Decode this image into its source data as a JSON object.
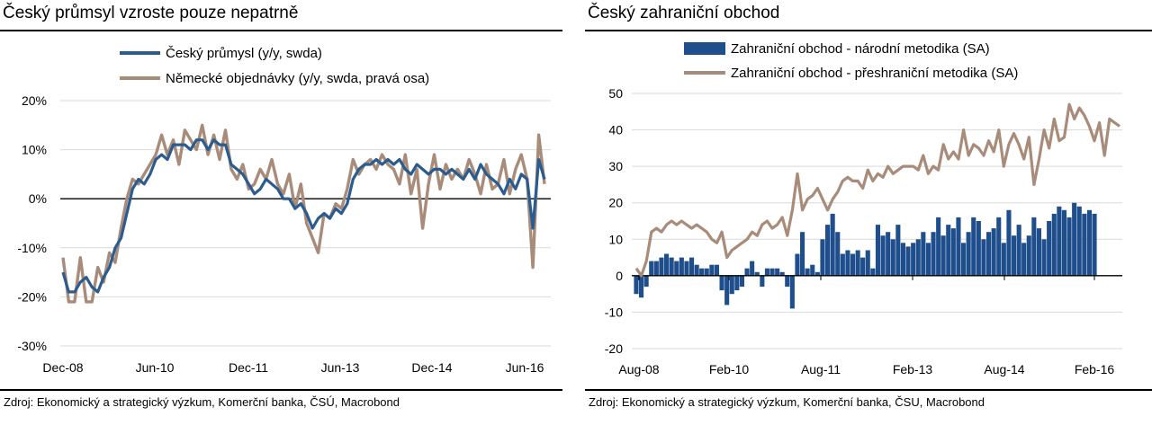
{
  "left": {
    "title": "Český průmsyl vzroste pouze nepatrně",
    "source": "Zdroj: Ekonomický a strategický výzkum, Komerční banka, ČSÚ, Macrobond",
    "chart_data": {
      "type": "line",
      "title": "Český průmsyl vzroste pouze nepatrně",
      "legend_position": "top",
      "grid": true,
      "y_tick_labels": [
        "20%",
        "10%",
        "0%",
        "-10%",
        "-20%",
        "-30%"
      ],
      "y_ticks": [
        20,
        10,
        0,
        -10,
        -20,
        -30
      ],
      "ylim": [
        -30,
        20
      ],
      "x_tick_labels": [
        "Dec-08",
        "Jun-10",
        "Dec-11",
        "Jun-13",
        "Dec-14",
        "Jun-16"
      ],
      "series": [
        {
          "name": "Český průmysl (y/y, swda)",
          "color": "#2b5c8f",
          "start": "2008-12",
          "values": [
            -15,
            -19,
            -19,
            -17,
            -16,
            -18,
            -19,
            -16,
            -14,
            -10,
            -8,
            -3,
            2,
            4,
            3,
            5,
            8,
            9,
            8,
            11,
            11,
            11,
            10,
            12,
            12,
            10,
            12,
            11,
            11,
            7,
            6,
            5,
            3,
            1,
            2,
            4,
            3,
            2,
            0,
            0,
            -2,
            -1,
            -3,
            -6,
            -4,
            -3,
            -4,
            -2,
            -3,
            -1,
            4,
            6,
            7,
            7,
            8,
            7,
            8,
            7,
            8,
            6,
            5,
            7,
            6,
            5,
            6,
            6,
            5,
            6,
            5,
            4,
            6,
            4,
            7,
            5,
            4,
            3,
            1,
            4,
            2,
            5,
            4,
            -6,
            8,
            4
          ]
        },
        {
          "name": "Německé objednávky (y/y, swda, pravá osa)",
          "color": "#a98b7a",
          "start": "2008-12",
          "values": [
            -12,
            -21,
            -21,
            -12,
            -21,
            -21,
            -14,
            -17,
            -11,
            -13,
            -6,
            0,
            4,
            3,
            5,
            7,
            9,
            13,
            9,
            12,
            7,
            14,
            12,
            10,
            15,
            9,
            13,
            8,
            14,
            6,
            4,
            7,
            2,
            3,
            6,
            4,
            8,
            3,
            1,
            5,
            -2,
            3,
            -5,
            -8,
            -11,
            -3,
            -4,
            -1,
            -2,
            2,
            8,
            5,
            7,
            8,
            6,
            9,
            7,
            6,
            3,
            9,
            1,
            6,
            -6,
            3,
            9,
            2,
            7,
            4,
            6,
            4,
            8,
            5,
            1,
            7,
            2,
            3,
            8,
            1,
            6,
            9,
            4,
            -14,
            13,
            3
          ]
        }
      ]
    }
  },
  "right": {
    "title": "Český zahraniční obchod",
    "source": "Zdroj: Ekonomický a strategický výzkum, Komerční banka, ČSU, Macrobond",
    "chart_data": {
      "type": "bar",
      "title": "Český zahraniční obchod",
      "legend_position": "top",
      "grid": true,
      "y_tick_labels": [
        "50",
        "40",
        "30",
        "20",
        "10",
        "0",
        "-10",
        "-20"
      ],
      "y_ticks": [
        50,
        40,
        30,
        20,
        10,
        0,
        -10,
        -20
      ],
      "ylim": [
        -20,
        50
      ],
      "x_tick_labels": [
        "Aug-08",
        "Feb-10",
        "Aug-11",
        "Feb-13",
        "Aug-14",
        "Feb-16"
      ],
      "series": [
        {
          "name": "Zahraniční obchod - národní metodika (SA)",
          "type": "bar",
          "color": "#1f4e8c",
          "start": "2008-08",
          "values": [
            -5,
            -6,
            -3,
            4,
            4,
            5,
            6,
            5,
            4,
            5,
            4,
            5,
            3,
            2,
            2,
            3,
            3,
            -4,
            -8,
            -5,
            -4,
            -3,
            2,
            4,
            1,
            -3,
            2,
            2,
            2,
            1,
            -3,
            -9,
            6,
            12,
            2,
            3,
            1,
            10,
            14,
            17,
            12,
            6,
            7,
            6,
            7,
            5,
            7,
            2,
            14,
            11,
            12,
            10,
            14,
            9,
            8,
            9,
            10,
            12,
            9,
            12,
            16,
            11,
            14,
            13,
            16,
            9,
            12,
            16,
            15,
            10,
            12,
            13,
            16,
            9,
            18,
            11,
            14,
            9,
            11,
            16,
            13,
            10,
            15,
            17,
            19,
            18,
            16,
            20,
            19,
            17,
            18,
            17
          ]
        },
        {
          "name": "Zahraniční obchod - přeshraniční metodika (SA)",
          "type": "line",
          "color": "#a98b7a",
          "start": "2008-08",
          "values": [
            2,
            0,
            4,
            12,
            13,
            12,
            14,
            15,
            14,
            15,
            14,
            13,
            14,
            13,
            12,
            10,
            9,
            12,
            5,
            7,
            8,
            9,
            10,
            12,
            11,
            14,
            15,
            13,
            14,
            16,
            11,
            18,
            28,
            18,
            21,
            22,
            24,
            21,
            18,
            21,
            23,
            26,
            27,
            26,
            26,
            24,
            29,
            26,
            28,
            27,
            30,
            28,
            29,
            30,
            30,
            30,
            29,
            33,
            28,
            30,
            29,
            36,
            32,
            34,
            32,
            40,
            33,
            36,
            35,
            33,
            37,
            34,
            40,
            30,
            36,
            39,
            36,
            32,
            38,
            25,
            32,
            40,
            35,
            43,
            37,
            38,
            47,
            43,
            46,
            44,
            41,
            37,
            42,
            33,
            43,
            42,
            41
          ]
        }
      ]
    }
  }
}
